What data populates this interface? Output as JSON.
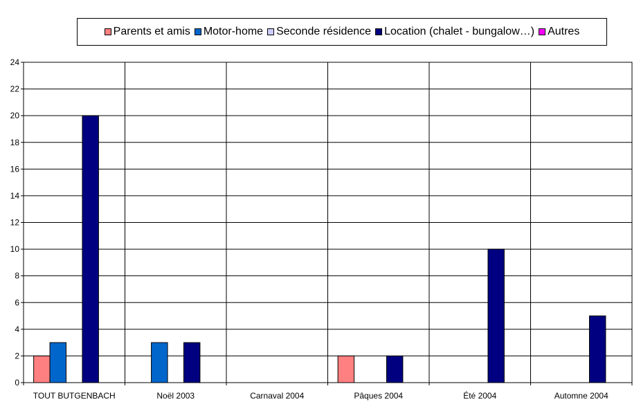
{
  "chart_data": {
    "type": "bar",
    "categories": [
      "TOUT BUTGENBACH",
      "Noël 2003",
      "Carnaval 2004",
      "Pâques 2004",
      "Été 2004",
      "Automne 2004"
    ],
    "series": [
      {
        "name": "Parents et amis",
        "color": "#FF8080",
        "values": [
          2,
          0,
          0,
          2,
          0,
          0
        ]
      },
      {
        "name": "Motor-home",
        "color": "#0066CC",
        "values": [
          3,
          3,
          0,
          0,
          0,
          0
        ]
      },
      {
        "name": "Seconde résidence",
        "color": "#CCCCFF",
        "values": [
          0,
          0,
          0,
          0,
          0,
          0
        ]
      },
      {
        "name": "Location (chalet - bungalow…)",
        "color": "#000080",
        "values": [
          20,
          3,
          0,
          2,
          10,
          5
        ]
      },
      {
        "name": "Autres",
        "color": "#FF00FF",
        "values": [
          0,
          0,
          0,
          0,
          0,
          0
        ]
      }
    ],
    "ylim": [
      0,
      24
    ],
    "ytick_step": 2,
    "grid": true,
    "legend_position": "top"
  }
}
